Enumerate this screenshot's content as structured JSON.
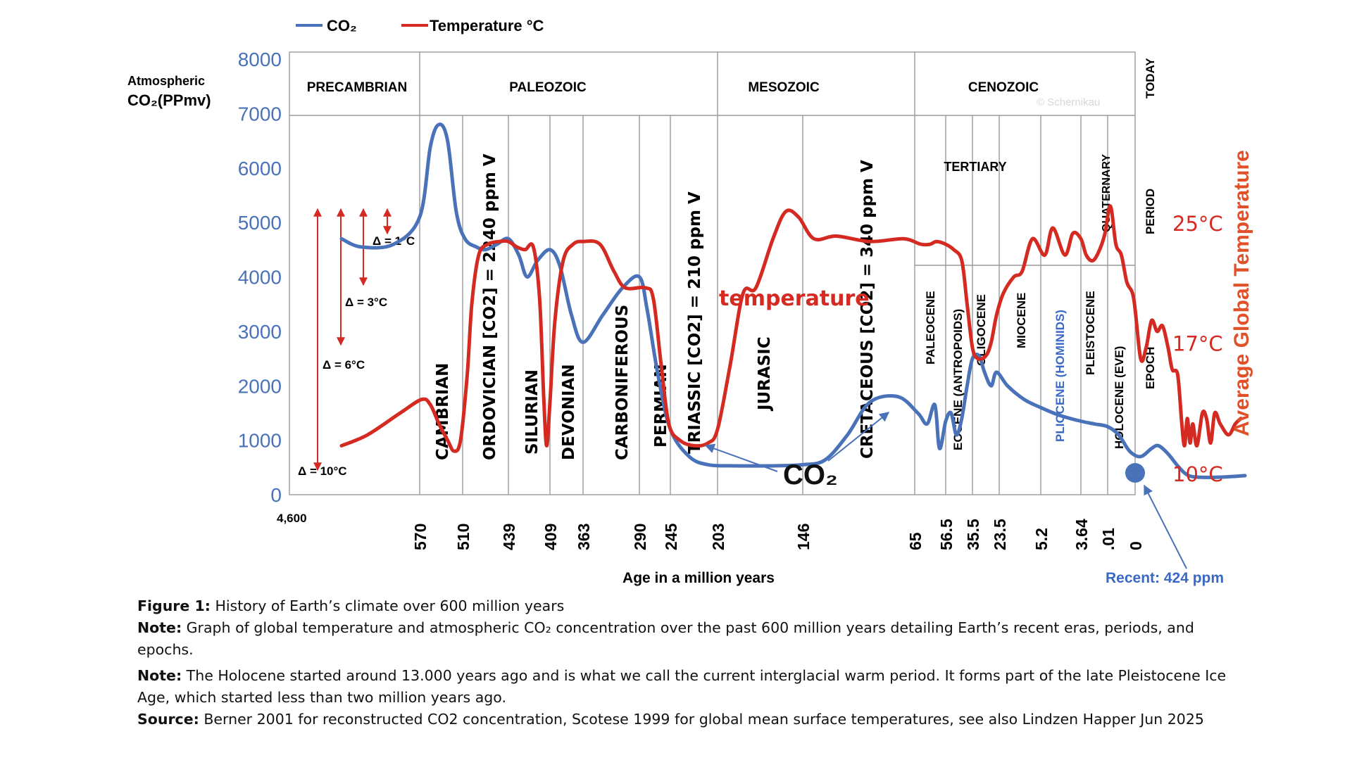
{
  "legend": {
    "co2_label": "CO₂",
    "temp_label": "Temperature °C"
  },
  "y_axis_title": [
    "Atmospheric",
    "CO₂(PPmv)"
  ],
  "right_axis_title": "Average Global Temperature",
  "x_axis_title": "Age in a million years",
  "colors": {
    "co2": "#4a72b8",
    "temperature": "#d42a22",
    "grid": "#9a9a9a",
    "recent_label": "#3a68c4"
  },
  "chart_data": {
    "type": "line",
    "xlabel": "Age in a million years",
    "ylabel": "Atmospheric CO₂(PPmv)",
    "y2label": "Average Global Temperature",
    "ylim": [
      0,
      8000
    ],
    "y_ticks": [
      "0",
      "1000",
      "2000",
      "3000",
      "4000",
      "5000",
      "6000",
      "7000",
      "8000"
    ],
    "x_ticks": [
      "4,600",
      "570",
      "510",
      "439",
      "409",
      "363",
      "290",
      "245",
      "203",
      "146",
      "65",
      "56.5",
      "35.5",
      "23.5",
      "5.2",
      "3.64",
      ".01",
      "0"
    ],
    "temp_ticks": [
      {
        "label": "25°C",
        "co2_level": 5000
      },
      {
        "label": "17°C",
        "co2_level": 2800
      },
      {
        "label": "10°C",
        "co2_level": 400
      }
    ],
    "eras": [
      "PRECAMBRIAN",
      "PALEOZOIC",
      "MESOZOIC",
      "CENOZOIC"
    ],
    "periods": [
      "CAMBRIAN",
      "ORDOVICIAN [CO2] = 2240 ppm V",
      "SILURIAN",
      "DEVONIAN",
      "CARBONIFEROUS",
      "PERMIAN",
      "TRIASSIC [CO2] = 210 ppm V",
      "JURASIC",
      "CRETACEOUS [CO2] = 340 ppm V",
      "TERTIARY",
      "QUATERNARY"
    ],
    "epochs": [
      "PALEOCENE",
      "EOCENE (ANTROPOIDS)",
      "OLIGOCENE",
      "MIOCENE",
      "PLIOCENE (HOMINIDS)",
      "PLEISTOCENE",
      "HOLOCENE (EVE)"
    ],
    "right_labels": [
      "TODAY",
      "PERIOD",
      "EPOCH"
    ],
    "deltas": [
      "Δ = 1°C",
      "Δ = 3°C",
      "Δ = 6°C",
      "Δ = 10°C"
    ],
    "annotations": {
      "temperature": "temperature",
      "co2": "CO₂",
      "recent": "Recent: 424 ppm",
      "watermark": "© Schernikau"
    },
    "series": [
      {
        "name": "CO₂",
        "color": "#4a72b8",
        "points": [
          [
            0.4,
            4700
          ],
          [
            0.55,
            4550
          ],
          [
            0.8,
            4600
          ],
          [
            1.0,
            5100
          ],
          [
            1.25,
            6400
          ],
          [
            1.45,
            6800
          ],
          [
            1.65,
            6500
          ],
          [
            1.85,
            5200
          ],
          [
            2.05,
            4700
          ],
          [
            2.3,
            4550
          ],
          [
            2.5,
            4500
          ],
          [
            2.75,
            4600
          ],
          [
            3.0,
            4700
          ],
          [
            3.25,
            4400
          ],
          [
            3.45,
            4000
          ],
          [
            3.7,
            4300
          ],
          [
            4.0,
            4500
          ],
          [
            4.3,
            4200
          ],
          [
            4.65,
            3300
          ],
          [
            5.0,
            2800
          ],
          [
            5.35,
            3300
          ],
          [
            5.7,
            3800
          ],
          [
            6.0,
            4000
          ],
          [
            6.25,
            3400
          ],
          [
            6.6,
            2200
          ],
          [
            7.0,
            1200
          ],
          [
            7.4,
            700
          ],
          [
            7.8,
            550
          ],
          [
            8.2,
            530
          ],
          [
            8.6,
            530
          ],
          [
            9.0,
            550
          ],
          [
            9.2,
            640
          ],
          [
            9.4,
            1100
          ],
          [
            9.6,
            1700
          ],
          [
            9.85,
            1800
          ],
          [
            10.1,
            1500
          ],
          [
            10.4,
            1300
          ],
          [
            10.65,
            1650
          ],
          [
            10.8,
            850
          ],
          [
            11.0,
            1350
          ],
          [
            11.2,
            1500
          ],
          [
            11.4,
            1100
          ],
          [
            11.6,
            1400
          ],
          [
            11.8,
            2000
          ],
          [
            12.0,
            2500
          ],
          [
            12.25,
            2550
          ],
          [
            12.45,
            2250
          ],
          [
            12.7,
            2000
          ],
          [
            12.9,
            2250
          ],
          [
            13.2,
            2000
          ],
          [
            13.6,
            1750
          ],
          [
            14.0,
            1600
          ],
          [
            14.5,
            1450
          ],
          [
            15.0,
            1350
          ],
          [
            15.5,
            1300
          ],
          [
            16.0,
            1250
          ],
          [
            16.4,
            1100
          ],
          [
            16.8,
            800
          ],
          [
            17.2,
            700
          ],
          [
            17.6,
            850
          ],
          [
            17.85,
            900
          ],
          [
            18.2,
            750
          ],
          [
            18.6,
            500
          ],
          [
            18.95,
            350
          ],
          [
            19.4,
            320
          ],
          [
            19.9,
            320
          ],
          [
            20.4,
            330
          ],
          [
            21.0,
            350
          ]
        ]
      },
      {
        "name": "Temperature °C",
        "color": "#d42a22",
        "points": [
          [
            0.4,
            900
          ],
          [
            0.6,
            1100
          ],
          [
            0.85,
            1500
          ],
          [
            1.05,
            1750
          ],
          [
            1.25,
            1650
          ],
          [
            1.45,
            1300
          ],
          [
            1.65,
            1000
          ],
          [
            1.8,
            800
          ],
          [
            1.95,
            1000
          ],
          [
            2.1,
            2200
          ],
          [
            2.2,
            3500
          ],
          [
            2.35,
            4400
          ],
          [
            2.55,
            4600
          ],
          [
            2.8,
            4650
          ],
          [
            3.0,
            4650
          ],
          [
            3.2,
            4550
          ],
          [
            3.4,
            4500
          ],
          [
            3.6,
            4550
          ],
          [
            3.75,
            3600
          ],
          [
            3.85,
            1800
          ],
          [
            3.92,
            900
          ],
          [
            4.0,
            1700
          ],
          [
            4.15,
            3200
          ],
          [
            4.4,
            4300
          ],
          [
            4.7,
            4600
          ],
          [
            5.0,
            4650
          ],
          [
            5.3,
            4600
          ],
          [
            5.55,
            4100
          ],
          [
            5.75,
            3800
          ],
          [
            6.2,
            3800
          ],
          [
            6.45,
            3600
          ],
          [
            6.7,
            2400
          ],
          [
            6.95,
            1300
          ],
          [
            7.2,
            1000
          ],
          [
            7.5,
            900
          ],
          [
            7.8,
            950
          ],
          [
            8.0,
            1200
          ],
          [
            8.15,
            2400
          ],
          [
            8.3,
            3700
          ],
          [
            8.45,
            3800
          ],
          [
            8.65,
            4700
          ],
          [
            8.8,
            5200
          ],
          [
            8.95,
            5100
          ],
          [
            9.1,
            4700
          ],
          [
            9.3,
            4750
          ],
          [
            9.6,
            4650
          ],
          [
            9.9,
            4700
          ],
          [
            10.2,
            4600
          ],
          [
            10.5,
            4600
          ],
          [
            10.7,
            4650
          ],
          [
            11.0,
            4600
          ],
          [
            11.3,
            4500
          ],
          [
            11.6,
            4300
          ],
          [
            11.8,
            3500
          ],
          [
            12.0,
            2700
          ],
          [
            12.2,
            2500
          ],
          [
            12.5,
            2550
          ],
          [
            12.7,
            2800
          ],
          [
            12.9,
            3300
          ],
          [
            13.1,
            3700
          ],
          [
            13.35,
            4000
          ],
          [
            13.55,
            4100
          ],
          [
            13.8,
            4700
          ],
          [
            14.1,
            4400
          ],
          [
            14.3,
            4900
          ],
          [
            14.6,
            4400
          ],
          [
            14.8,
            4800
          ],
          [
            15.0,
            4700
          ],
          [
            15.2,
            4400
          ],
          [
            15.45,
            4300
          ],
          [
            15.7,
            4500
          ],
          [
            15.9,
            4800
          ],
          [
            16.1,
            5300
          ],
          [
            16.3,
            4600
          ],
          [
            16.5,
            4400
          ],
          [
            16.7,
            3900
          ],
          [
            16.95,
            3600
          ],
          [
            17.2,
            2500
          ],
          [
            17.4,
            2700
          ],
          [
            17.6,
            3200
          ],
          [
            17.8,
            3000
          ],
          [
            18.0,
            3100
          ],
          [
            18.2,
            2700
          ],
          [
            18.35,
            2300
          ],
          [
            18.55,
            2200
          ],
          [
            18.7,
            1300
          ],
          [
            18.8,
            900
          ],
          [
            18.9,
            1400
          ],
          [
            19.0,
            950
          ],
          [
            19.1,
            1300
          ],
          [
            19.25,
            900
          ],
          [
            19.45,
            1500
          ],
          [
            19.6,
            1400
          ],
          [
            19.75,
            950
          ],
          [
            19.9,
            1500
          ],
          [
            20.1,
            1300
          ],
          [
            20.4,
            1100
          ],
          [
            20.65,
            1300
          ],
          [
            20.85,
            1400
          ]
        ]
      }
    ]
  },
  "caption": {
    "figure_label": "Figure 1:",
    "figure_text": " History of Earth’s climate over 600 million years",
    "note1_label": "Note:",
    "note1_text": " Graph of global temperature and atmospheric CO₂ concentration over the past 600 million years detailing Earth’s recent eras, periods, and epochs.",
    "note2_label": "Note:",
    "note2_text": " The Holocene started around 13.000 years ago and is what we call the current interglacial warm period. It forms part of the late Pleistocene Ice Age, which started less than two million years ago.",
    "source_label": "Source:",
    "source_text": " Berner 2001 for reconstructed CO2 concentration, Scotese 1999 for global mean surface temperatures, see also Lindzen Happer Jun 2025"
  }
}
